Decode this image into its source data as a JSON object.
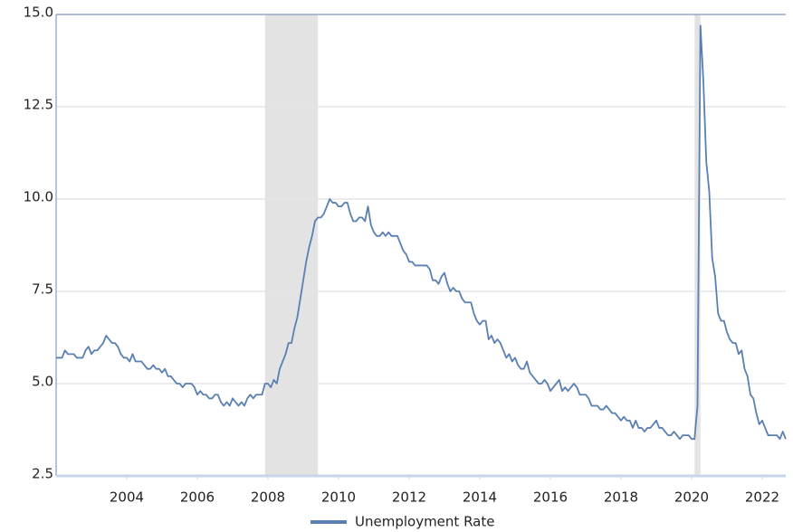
{
  "chart_data": {
    "type": "line",
    "series": [
      {
        "name": "Unemployment Rate",
        "color": "#5a7fb3",
        "x": [
          2002,
          2002.083,
          2002.167,
          2002.25,
          2002.333,
          2002.417,
          2002.5,
          2002.583,
          2002.667,
          2002.75,
          2002.833,
          2002.917,
          2003,
          2003.083,
          2003.167,
          2003.25,
          2003.333,
          2003.417,
          2003.5,
          2003.583,
          2003.667,
          2003.75,
          2003.833,
          2003.917,
          2004,
          2004.083,
          2004.167,
          2004.25,
          2004.333,
          2004.417,
          2004.5,
          2004.583,
          2004.667,
          2004.75,
          2004.833,
          2004.917,
          2005,
          2005.083,
          2005.167,
          2005.25,
          2005.333,
          2005.417,
          2005.5,
          2005.583,
          2005.667,
          2005.75,
          2005.833,
          2005.917,
          2006,
          2006.083,
          2006.167,
          2006.25,
          2006.333,
          2006.417,
          2006.5,
          2006.583,
          2006.667,
          2006.75,
          2006.833,
          2006.917,
          2007,
          2007.083,
          2007.167,
          2007.25,
          2007.333,
          2007.417,
          2007.5,
          2007.583,
          2007.667,
          2007.75,
          2007.833,
          2007.917,
          2008,
          2008.083,
          2008.167,
          2008.25,
          2008.333,
          2008.417,
          2008.5,
          2008.583,
          2008.667,
          2008.75,
          2008.833,
          2008.917,
          2009,
          2009.083,
          2009.167,
          2009.25,
          2009.333,
          2009.417,
          2009.5,
          2009.583,
          2009.667,
          2009.75,
          2009.833,
          2009.917,
          2010,
          2010.083,
          2010.167,
          2010.25,
          2010.333,
          2010.417,
          2010.5,
          2010.583,
          2010.667,
          2010.75,
          2010.833,
          2010.917,
          2011,
          2011.083,
          2011.167,
          2011.25,
          2011.333,
          2011.417,
          2011.5,
          2011.583,
          2011.667,
          2011.75,
          2011.833,
          2011.917,
          2012,
          2012.083,
          2012.167,
          2012.25,
          2012.333,
          2012.417,
          2012.5,
          2012.583,
          2012.667,
          2012.75,
          2012.833,
          2012.917,
          2013,
          2013.083,
          2013.167,
          2013.25,
          2013.333,
          2013.417,
          2013.5,
          2013.583,
          2013.667,
          2013.75,
          2013.833,
          2013.917,
          2014,
          2014.083,
          2014.167,
          2014.25,
          2014.333,
          2014.417,
          2014.5,
          2014.583,
          2014.667,
          2014.75,
          2014.833,
          2014.917,
          2015,
          2015.083,
          2015.167,
          2015.25,
          2015.333,
          2015.417,
          2015.5,
          2015.583,
          2015.667,
          2015.75,
          2015.833,
          2015.917,
          2016,
          2016.083,
          2016.167,
          2016.25,
          2016.333,
          2016.417,
          2016.5,
          2016.583,
          2016.667,
          2016.75,
          2016.833,
          2016.917,
          2017,
          2017.083,
          2017.167,
          2017.25,
          2017.333,
          2017.417,
          2017.5,
          2017.583,
          2017.667,
          2017.75,
          2017.833,
          2017.917,
          2018,
          2018.083,
          2018.167,
          2018.25,
          2018.333,
          2018.417,
          2018.5,
          2018.583,
          2018.667,
          2018.75,
          2018.833,
          2018.917,
          2019,
          2019.083,
          2019.167,
          2019.25,
          2019.333,
          2019.417,
          2019.5,
          2019.583,
          2019.667,
          2019.75,
          2019.833,
          2019.917,
          2020,
          2020.083,
          2020.167,
          2020.25,
          2020.333,
          2020.417,
          2020.5,
          2020.583,
          2020.667,
          2020.75,
          2020.833,
          2020.917,
          2021,
          2021.083,
          2021.167,
          2021.25,
          2021.333,
          2021.417,
          2021.5,
          2021.583,
          2021.667,
          2021.75,
          2021.833,
          2021.917,
          2022,
          2022.083,
          2022.167,
          2022.25,
          2022.333,
          2022.417,
          2022.5,
          2022.583,
          2022.667
        ],
        "values": [
          5.7,
          5.7,
          5.7,
          5.9,
          5.8,
          5.8,
          5.8,
          5.7,
          5.7,
          5.7,
          5.9,
          6.0,
          5.8,
          5.9,
          5.9,
          6.0,
          6.1,
          6.3,
          6.2,
          6.1,
          6.1,
          6.0,
          5.8,
          5.7,
          5.7,
          5.6,
          5.8,
          5.6,
          5.6,
          5.6,
          5.5,
          5.4,
          5.4,
          5.5,
          5.4,
          5.4,
          5.3,
          5.4,
          5.2,
          5.2,
          5.1,
          5.0,
          5.0,
          4.9,
          5.0,
          5.0,
          5.0,
          4.9,
          4.7,
          4.8,
          4.7,
          4.7,
          4.6,
          4.6,
          4.7,
          4.7,
          4.5,
          4.4,
          4.5,
          4.4,
          4.6,
          4.5,
          4.4,
          4.5,
          4.4,
          4.6,
          4.7,
          4.6,
          4.7,
          4.7,
          4.7,
          5.0,
          5.0,
          4.9,
          5.1,
          5.0,
          5.4,
          5.6,
          5.8,
          6.1,
          6.1,
          6.5,
          6.8,
          7.3,
          7.8,
          8.3,
          8.7,
          9.0,
          9.4,
          9.5,
          9.5,
          9.6,
          9.8,
          10.0,
          9.9,
          9.9,
          9.8,
          9.8,
          9.9,
          9.9,
          9.6,
          9.4,
          9.4,
          9.5,
          9.5,
          9.4,
          9.8,
          9.3,
          9.1,
          9.0,
          9.0,
          9.1,
          9.0,
          9.1,
          9.0,
          9.0,
          9.0,
          8.8,
          8.6,
          8.5,
          8.3,
          8.3,
          8.2,
          8.2,
          8.2,
          8.2,
          8.2,
          8.1,
          7.8,
          7.8,
          7.7,
          7.9,
          8.0,
          7.7,
          7.5,
          7.6,
          7.5,
          7.5,
          7.3,
          7.2,
          7.2,
          7.2,
          6.9,
          6.7,
          6.6,
          6.7,
          6.7,
          6.2,
          6.3,
          6.1,
          6.2,
          6.1,
          5.9,
          5.7,
          5.8,
          5.6,
          5.7,
          5.5,
          5.4,
          5.4,
          5.6,
          5.3,
          5.2,
          5.1,
          5.0,
          5.0,
          5.1,
          5.0,
          4.8,
          4.9,
          5.0,
          5.1,
          4.8,
          4.9,
          4.8,
          4.9,
          5.0,
          4.9,
          4.7,
          4.7,
          4.7,
          4.6,
          4.4,
          4.4,
          4.4,
          4.3,
          4.3,
          4.4,
          4.3,
          4.2,
          4.2,
          4.1,
          4.0,
          4.1,
          4.0,
          4.0,
          3.8,
          4.0,
          3.8,
          3.8,
          3.7,
          3.8,
          3.8,
          3.9,
          4.0,
          3.8,
          3.8,
          3.7,
          3.6,
          3.6,
          3.7,
          3.6,
          3.5,
          3.6,
          3.6,
          3.6,
          3.5,
          3.5,
          4.4,
          14.7,
          13.2,
          11.0,
          10.2,
          8.4,
          7.9,
          6.9,
          6.7,
          6.7,
          6.4,
          6.2,
          6.1,
          6.1,
          5.8,
          5.9,
          5.4,
          5.2,
          4.7,
          4.6,
          4.2,
          3.9,
          4.0,
          3.8,
          3.6,
          3.6,
          3.6,
          3.6,
          3.5,
          3.7,
          3.5
        ]
      }
    ],
    "recessions": [
      [
        2007.917,
        2009.417
      ],
      [
        2020.083,
        2020.25
      ]
    ],
    "recession_color": "#e3e3e3",
    "xlim": [
      2002,
      2022.667
    ],
    "xticks": [
      2004,
      2006,
      2008,
      2010,
      2012,
      2014,
      2016,
      2018,
      2020,
      2022
    ],
    "ylim": [
      2.5,
      15
    ],
    "yticks": [
      2.5,
      {
        "value": 5,
        "label": "5.0"
      },
      7.5,
      {
        "value": 10,
        "label": "10.0"
      },
      12.5,
      {
        "value": 15,
        "label": "15.0"
      }
    ],
    "grid": true,
    "legend": "bottom"
  }
}
